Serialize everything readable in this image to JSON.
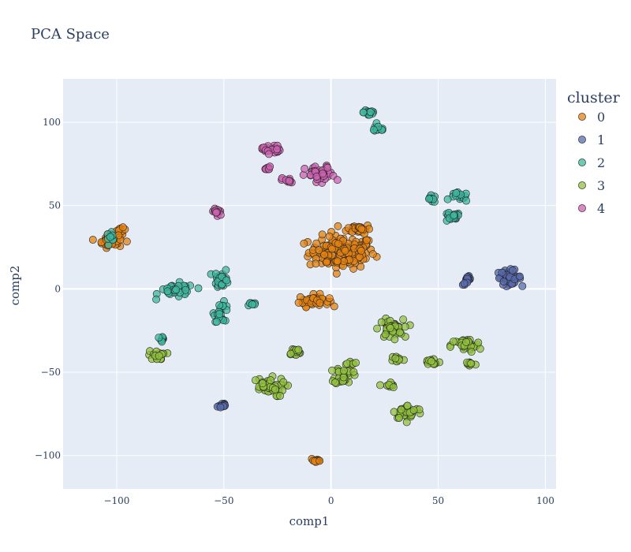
{
  "chart_data": {
    "type": "scatter",
    "title": "PCA Space",
    "xlabel": "comp1",
    "ylabel": "comp2",
    "xlim": [
      -125,
      105
    ],
    "ylim": [
      -120,
      126
    ],
    "xticks": [
      -100,
      -50,
      0,
      50,
      100
    ],
    "yticks": [
      -100,
      -50,
      0,
      50,
      100
    ],
    "xtick_labels": [
      "−100",
      "−50",
      "0",
      "50",
      "100"
    ],
    "ytick_labels": [
      "−100",
      "−50",
      "0",
      "50",
      "100"
    ],
    "grid": true,
    "plot_bgcolor": "#E5ECF6",
    "legend": {
      "title": "cluster",
      "position": "right"
    },
    "series": [
      {
        "name": "0",
        "color": "#E68310",
        "clusters": [
          {
            "x": 5,
            "y": 22,
            "sx": 11,
            "sy": 7,
            "n": 150
          },
          {
            "x": 13,
            "y": 36,
            "sx": 4,
            "sy": 2,
            "n": 30
          },
          {
            "x": -8,
            "y": -7,
            "sx": 5,
            "sy": 2.5,
            "n": 40
          },
          {
            "x": -103,
            "y": 29,
            "sx": 4,
            "sy": 3,
            "n": 35
          },
          {
            "x": -98,
            "y": 35,
            "sx": 1.5,
            "sy": 1.2,
            "n": 8
          },
          {
            "x": -7,
            "y": -103,
            "sx": 1.8,
            "sy": 1,
            "n": 10
          }
        ]
      },
      {
        "name": "1",
        "color": "#5A6BAD",
        "clusters": [
          {
            "x": 83,
            "y": 7,
            "sx": 4,
            "sy": 3,
            "n": 45
          },
          {
            "x": 64,
            "y": 5,
            "sx": 1.8,
            "sy": 2,
            "n": 15
          },
          {
            "x": -51,
            "y": -70,
            "sx": 1.8,
            "sy": 1.5,
            "n": 12
          }
        ]
      },
      {
        "name": "2",
        "color": "#3EB8A0",
        "clusters": [
          {
            "x": 18,
            "y": 106,
            "sx": 2,
            "sy": 2,
            "n": 15
          },
          {
            "x": 22,
            "y": 96,
            "sx": 2.5,
            "sy": 1.5,
            "n": 12
          },
          {
            "x": 47,
            "y": 54,
            "sx": 2,
            "sy": 1.5,
            "n": 12
          },
          {
            "x": 56,
            "y": 43,
            "sx": 3,
            "sy": 2,
            "n": 20
          },
          {
            "x": 60,
            "y": 55,
            "sx": 3,
            "sy": 2,
            "n": 15
          },
          {
            "x": -72,
            "y": -1,
            "sx": 6,
            "sy": 3,
            "n": 35
          },
          {
            "x": -51,
            "y": 6,
            "sx": 2.5,
            "sy": 4,
            "n": 25
          },
          {
            "x": -51,
            "y": -14,
            "sx": 2.5,
            "sy": 4,
            "n": 25
          },
          {
            "x": -37,
            "y": -9,
            "sx": 1.5,
            "sy": 1,
            "n": 8
          },
          {
            "x": -79,
            "y": -30,
            "sx": 1.5,
            "sy": 1,
            "n": 8
          },
          {
            "x": -103,
            "y": 32,
            "sx": 2,
            "sy": 2,
            "n": 8
          }
        ]
      },
      {
        "name": "3",
        "color": "#92C13E",
        "clusters": [
          {
            "x": 28,
            "y": -24,
            "sx": 4,
            "sy": 4,
            "n": 45
          },
          {
            "x": 63,
            "y": -34,
            "sx": 5,
            "sy": 3,
            "n": 35
          },
          {
            "x": 65,
            "y": -45,
            "sx": 2,
            "sy": 1.5,
            "n": 12
          },
          {
            "x": 47,
            "y": -44,
            "sx": 3,
            "sy": 2,
            "n": 15
          },
          {
            "x": 31,
            "y": -42,
            "sx": 2,
            "sy": 1.5,
            "n": 10
          },
          {
            "x": 36,
            "y": -74,
            "sx": 5,
            "sy": 3,
            "n": 35
          },
          {
            "x": 27,
            "y": -58,
            "sx": 2,
            "sy": 1.5,
            "n": 10
          },
          {
            "x": 6,
            "y": -52,
            "sx": 3,
            "sy": 4,
            "n": 30
          },
          {
            "x": 9,
            "y": -44,
            "sx": 2,
            "sy": 1,
            "n": 8
          },
          {
            "x": -17,
            "y": -38,
            "sx": 2.5,
            "sy": 2,
            "n": 15
          },
          {
            "x": -30,
            "y": -59,
            "sx": 6,
            "sy": 4,
            "n": 45
          },
          {
            "x": -81,
            "y": -40,
            "sx": 3,
            "sy": 2,
            "n": 18
          }
        ]
      },
      {
        "name": "4",
        "color": "#CC61B0",
        "clusters": [
          {
            "x": -28,
            "y": 84,
            "sx": 3,
            "sy": 2,
            "n": 25
          },
          {
            "x": -30,
            "y": 72,
            "sx": 1.5,
            "sy": 1,
            "n": 8
          },
          {
            "x": -20,
            "y": 65,
            "sx": 2,
            "sy": 1.5,
            "n": 12
          },
          {
            "x": -5,
            "y": 68,
            "sx": 5,
            "sy": 4,
            "n": 40
          },
          {
            "x": -53,
            "y": 46,
            "sx": 2,
            "sy": 2,
            "n": 15
          }
        ]
      }
    ]
  }
}
